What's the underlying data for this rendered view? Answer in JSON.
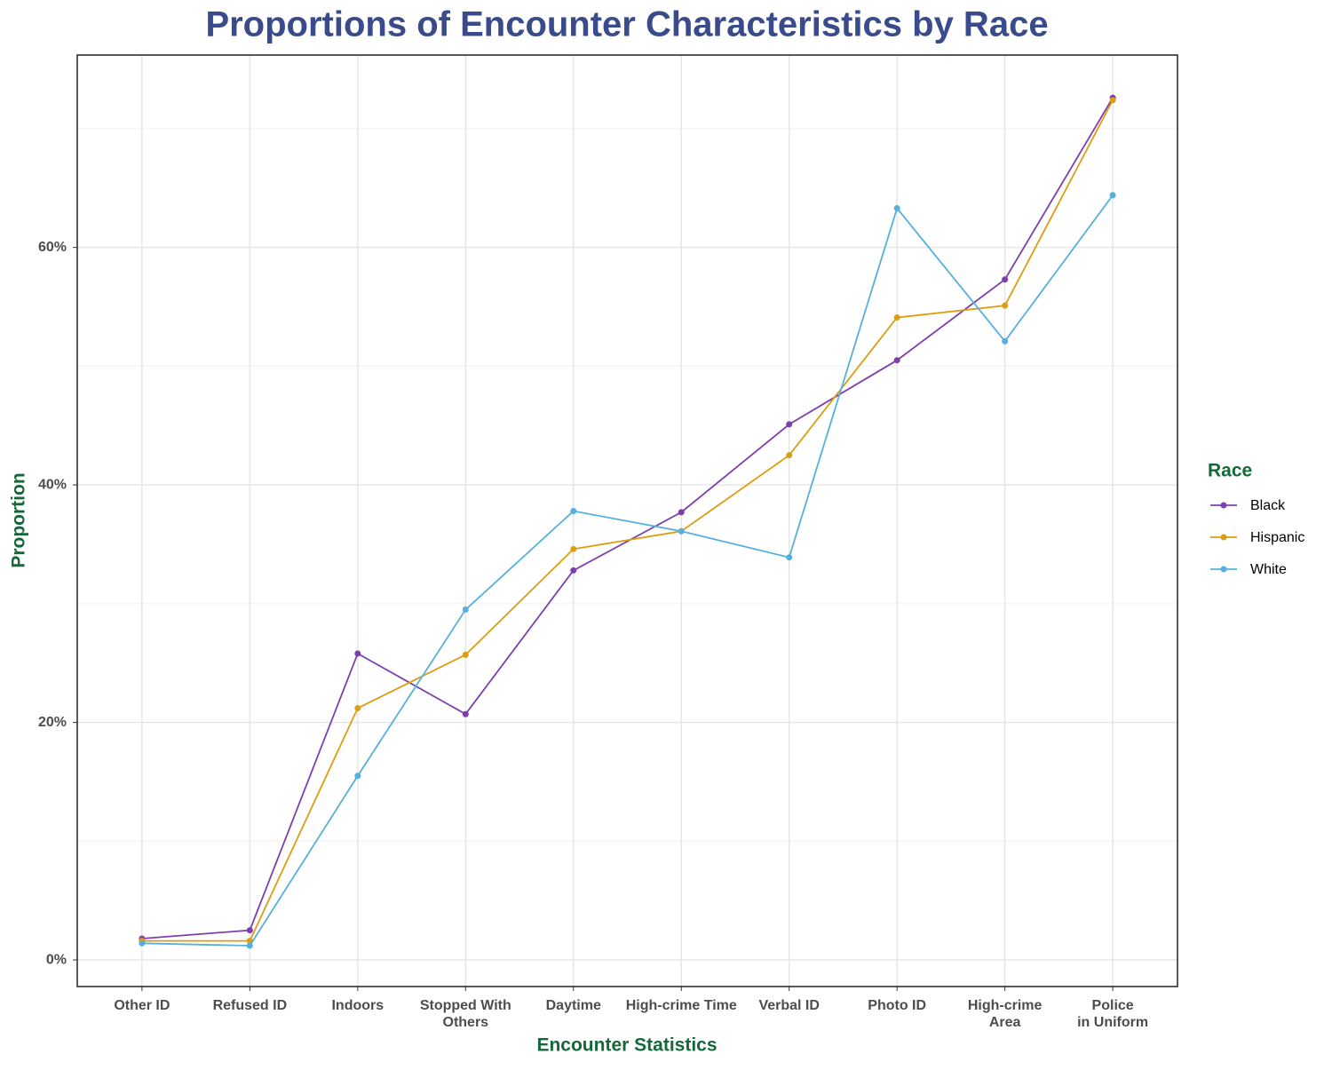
{
  "chart_data": {
    "type": "line",
    "title": "Proportions of Encounter Characteristics by Race",
    "x_label": "Encounter Statistics",
    "y_label": "Proportion",
    "legend_title": "Race",
    "legend_position": "right",
    "categories": [
      "Other ID",
      "Refused ID",
      "Indoors",
      "Stopped With\nOthers",
      "Daytime",
      "High-crime  Time",
      "Verbal ID",
      "Photo ID",
      "High-crime\nArea",
      "Police\nin Uniform"
    ],
    "series": [
      {
        "name": "Black",
        "color": "#7e3fae",
        "values": [
          1.8,
          2.5,
          25.8,
          20.7,
          32.8,
          37.7,
          45.1,
          50.5,
          57.3,
          72.6
        ]
      },
      {
        "name": "Hispanic",
        "color": "#dc9d12",
        "values": [
          1.6,
          1.6,
          21.2,
          25.7,
          34.6,
          36.1,
          42.5,
          54.1,
          55.1,
          72.4
        ]
      },
      {
        "name": "White",
        "color": "#56b0dd",
        "values": [
          1.4,
          1.2,
          15.5,
          29.5,
          37.8,
          36.1,
          33.9,
          63.3,
          52.1,
          64.4
        ]
      }
    ],
    "ylim": [
      -2.24,
      76.2
    ],
    "yticks": [
      {
        "value": 0,
        "label": "0%"
      },
      {
        "value": 20,
        "label": "20%"
      },
      {
        "value": 40,
        "label": "40%"
      },
      {
        "value": 60,
        "label": "60%"
      }
    ],
    "minor_yticks": [
      10,
      30,
      50,
      70
    ],
    "grid": true
  }
}
